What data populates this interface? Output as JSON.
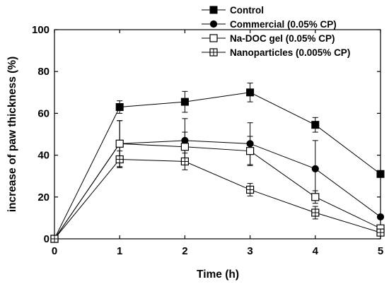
{
  "chart_data": {
    "type": "line",
    "title": "",
    "xlabel": "Time (h)",
    "ylabel": "increase of paw thickness (%)",
    "x": [
      0,
      1,
      2,
      3,
      4,
      5
    ],
    "xlim": [
      0,
      5
    ],
    "ylim": [
      0,
      100
    ],
    "xticks": [
      "0",
      "1",
      "2",
      "3",
      "4",
      "5"
    ],
    "yticks": [
      "0",
      "20",
      "40",
      "60",
      "80",
      "100"
    ],
    "grid": false,
    "legend_position": "top-right",
    "series": [
      {
        "name": "Control",
        "marker": "filled-square",
        "values": [
          0,
          63,
          65.5,
          70,
          54.5,
          31
        ],
        "errors": [
          0,
          3,
          5,
          4.5,
          3.5,
          0
        ]
      },
      {
        "name": "Commercial (0.05% CP)",
        "marker": "filled-circle",
        "values": [
          0,
          45.5,
          47,
          45.5,
          33.5,
          10.5
        ],
        "errors": [
          0,
          11,
          10.5,
          10,
          13.5,
          0
        ]
      },
      {
        "name": "Na-DOC gel (0.05% CP)",
        "marker": "open-square",
        "values": [
          0,
          45.5,
          44,
          42,
          20,
          5
        ],
        "errors": [
          0,
          11,
          7,
          7,
          3,
          0
        ]
      },
      {
        "name": "Nanoparticles (0.005% CP)",
        "marker": "crossed-square",
        "values": [
          0,
          38,
          37,
          23.5,
          12.5,
          3
        ],
        "errors": [
          0,
          4,
          4,
          3,
          3,
          0
        ]
      }
    ]
  }
}
